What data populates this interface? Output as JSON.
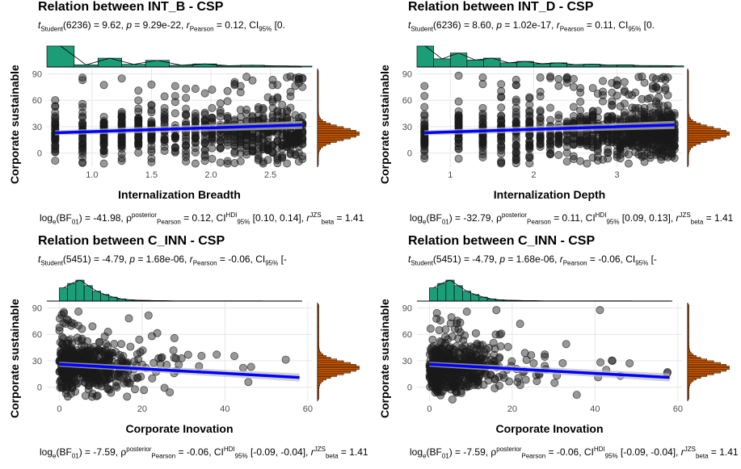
{
  "colors": {
    "points": "#1a1a1a",
    "fit_line": "#0000ff",
    "top_hist": "#1b9e77",
    "right_hist": "#d95f02",
    "grid": "#e6e6e6",
    "ci_band": "#bfbfbf"
  },
  "chart_data": [
    {
      "type": "scatter",
      "title": "Relation between INT_B - CSP",
      "subtitle": {
        "t_label": "t",
        "t_sub": "Student",
        "df": "(6236) = 9.62, ",
        "p_label": "p",
        "p_text": " = 9.29e-22, ",
        "r_label": "r",
        "r_hat": "^",
        "r_sub": "Pearson",
        "r_text": " = 0.12, CI",
        "ci_sub": "95%",
        "ci_text": " [0."
      },
      "caption": {
        "pre": "log",
        "pre_sub": "e",
        "bf": "(BF",
        "bf_sub": "01",
        "bf_val": ") = -41.98, ",
        "rho": "ρ",
        "rho_sup": "posterior",
        "rho_sub": "Pearson",
        "rho_val": " = 0.12, CI",
        "ci_sup": "HDI",
        "ci_sub": "95%",
        "ci_val": " [0.10, 0.14], ",
        "r": "r",
        "r_sup": "JZS",
        "r_sub": "beta",
        "r_val": " = 1.41"
      },
      "xlabel": "Internalization Breadth",
      "ylabel": "Corporate sustainable",
      "xlim": [
        0.62,
        2.85
      ],
      "ylim": [
        -16,
        96
      ],
      "xticks": [
        1.0,
        1.5,
        2.0,
        2.5
      ],
      "xtick_labels": [
        "1.0",
        "1.5",
        "2.0",
        "2.5"
      ],
      "yticks": [
        0,
        30,
        60,
        90
      ],
      "ytick_labels": [
        "0",
        "30",
        "60",
        "90"
      ],
      "x_levels": [
        0.69,
        0.92,
        1.1,
        1.25,
        1.39,
        1.5,
        1.61,
        1.7,
        1.79,
        1.87,
        1.95,
        2.01,
        2.08,
        2.14,
        2.2,
        2.25,
        2.3,
        2.35,
        2.4,
        2.44,
        2.48,
        2.52,
        2.56,
        2.6,
        2.64,
        2.67,
        2.71,
        2.74,
        2.77
      ],
      "fit": {
        "x": [
          0.69,
          2.77
        ],
        "y": [
          23,
          32
        ]
      },
      "top_hist": {
        "edges": [
          0.62,
          0.85,
          1.05,
          1.25,
          1.45,
          1.65,
          1.85,
          2.05,
          2.25,
          2.45,
          2.65,
          2.85
        ],
        "counts": [
          95,
          10,
          40,
          12,
          30,
          8,
          14,
          6,
          8,
          5,
          4
        ]
      },
      "right_hist": {
        "center": 22,
        "spread": 7,
        "tail": 0.02
      }
    },
    {
      "type": "scatter",
      "title": "Relation between INT_D - CSP",
      "subtitle": {
        "t_label": "t",
        "t_sub": "Student",
        "df": "(6236) = 8.60, ",
        "p_label": "p",
        "p_text": " = 1.02e-17, ",
        "r_label": "r",
        "r_hat": "^",
        "r_sub": "Pearson",
        "r_text": " = 0.11, CI",
        "ci_sub": "95%",
        "ci_text": " [0."
      },
      "caption": {
        "pre": "log",
        "pre_sub": "e",
        "bf": "(BF",
        "bf_sub": "01",
        "bf_val": ") = -32.79, ",
        "rho": "ρ",
        "rho_sup": "posterior",
        "rho_sub": "Pearson",
        "rho_val": " = 0.11, CI",
        "ci_sup": "HDI",
        "ci_sub": "95%",
        "ci_val": " [0.09, 0.13], ",
        "r": "r",
        "r_sup": "JZS",
        "r_sub": "beta",
        "r_val": " = 1.41"
      },
      "xlabel": "Internalization Depth",
      "ylabel": "Corporate sustainable",
      "xlim": [
        0.6,
        3.78
      ],
      "ylim": [
        -16,
        96
      ],
      "xticks": [
        1,
        2,
        3
      ],
      "xtick_labels": [
        "1",
        "2",
        "3"
      ],
      "yticks": [
        0,
        30,
        60,
        90
      ],
      "ytick_labels": [
        "0",
        "30",
        "60",
        "90"
      ],
      "x_levels": [
        0.69,
        1.1,
        1.39,
        1.61,
        1.79,
        1.95,
        2.08,
        2.2,
        2.3,
        2.4,
        2.48,
        2.56,
        2.64,
        2.71,
        2.77,
        2.83,
        2.89,
        2.94,
        3.0,
        3.04,
        3.09,
        3.14,
        3.18,
        3.22,
        3.26,
        3.3,
        3.33,
        3.37,
        3.4,
        3.43,
        3.47,
        3.5,
        3.53,
        3.56,
        3.58,
        3.61,
        3.64,
        3.66,
        3.69
      ],
      "fit": {
        "x": [
          0.69,
          3.69
        ],
        "y": [
          23,
          32
        ]
      },
      "top_hist": {
        "edges": [
          0.6,
          0.8,
          1.0,
          1.2,
          1.4,
          1.6,
          1.8,
          2.0,
          2.2,
          2.4,
          2.6,
          2.8,
          3.0,
          3.2,
          3.4,
          3.6,
          3.8
        ],
        "counts": [
          90,
          35,
          60,
          30,
          38,
          18,
          24,
          14,
          18,
          10,
          12,
          8,
          9,
          6,
          6,
          5
        ]
      },
      "right_hist": {
        "center": 22,
        "spread": 7,
        "tail": 0.02
      }
    },
    {
      "type": "scatter",
      "title": "Relation between C_INN - CSP",
      "subtitle": {
        "t_label": "t",
        "t_sub": "Student",
        "df": "(5451) = -4.79, ",
        "p_label": "p",
        "p_text": " = 1.68e-06, ",
        "r_label": "r",
        "r_hat": "^",
        "r_sub": "Pearson",
        "r_text": " = -0.06, CI",
        "ci_sub": "95%",
        "ci_text": " [-"
      },
      "caption": {
        "pre": "log",
        "pre_sub": "e",
        "bf": "(BF",
        "bf_sub": "01",
        "bf_val": ") = -7.59, ",
        "rho": "ρ",
        "rho_sup": "posterior",
        "rho_sub": "Pearson",
        "rho_val": " = -0.06, CI",
        "ci_sup": "HDI",
        "ci_sub": "95%",
        "ci_val": " [-0.09, -0.04], ",
        "r": "r",
        "r_sup": "JZS",
        "r_sub": "beta",
        "r_val": " = 1.41"
      },
      "xlabel": "Corporate Inovation",
      "ylabel": "Corporate sustainable",
      "xlim": [
        -3,
        61
      ],
      "ylim": [
        -16,
        96
      ],
      "xticks": [
        0,
        20,
        40,
        60
      ],
      "xtick_labels": [
        "0",
        "20",
        "40",
        "60"
      ],
      "yticks": [
        0,
        30,
        60,
        90
      ],
      "ytick_labels": [
        "0",
        "30",
        "60",
        "90"
      ],
      "fit": {
        "x": [
          0,
          58
        ],
        "y": [
          26,
          11
        ]
      },
      "top_hist": {
        "edges": [
          0,
          2,
          4,
          6,
          8,
          10,
          12,
          14,
          16,
          18,
          20,
          22,
          24,
          26,
          30,
          40,
          58
        ],
        "counts": [
          60,
          80,
          95,
          70,
          45,
          30,
          18,
          10,
          6,
          4,
          3,
          2,
          2,
          1,
          1,
          1
        ]
      },
      "right_hist": {
        "center": 22,
        "spread": 7,
        "tail": 0.03
      }
    },
    {
      "type": "scatter",
      "title": "Relation between C_INN - CSP",
      "subtitle": {
        "t_label": "t",
        "t_sub": "Student",
        "df": "(5451) = -4.79, ",
        "p_label": "p",
        "p_text": " = 1.68e-06, ",
        "r_label": "r",
        "r_hat": "^",
        "r_sub": "Pearson",
        "r_text": " = -0.06, CI",
        "ci_sub": "95%",
        "ci_text": " [-"
      },
      "caption": {
        "pre": "log",
        "pre_sub": "e",
        "bf": "(BF",
        "bf_sub": "01",
        "bf_val": ") = -7.59, ",
        "rho": "ρ",
        "rho_sup": "posterior",
        "rho_sub": "Pearson",
        "rho_val": " = -0.06, CI",
        "ci_sup": "HDI",
        "ci_sub": "95%",
        "ci_val": " [-0.09, -0.04], ",
        "r": "r",
        "r_sup": "JZS",
        "r_sub": "beta",
        "r_val": " = 1.41"
      },
      "xlabel": "Corporate Inovation",
      "ylabel": "Corporate sustainable",
      "xlim": [
        -3,
        61
      ],
      "ylim": [
        -16,
        96
      ],
      "xticks": [
        0,
        20,
        40,
        60
      ],
      "xtick_labels": [
        "0",
        "20",
        "40",
        "60"
      ],
      "yticks": [
        0,
        30,
        60,
        90
      ],
      "ytick_labels": [
        "0",
        "30",
        "60",
        "90"
      ],
      "fit": {
        "x": [
          0,
          58
        ],
        "y": [
          26,
          11
        ]
      },
      "top_hist": {
        "edges": [
          0,
          2,
          4,
          6,
          8,
          10,
          12,
          14,
          16,
          18,
          20,
          22,
          24,
          26,
          30,
          40,
          58
        ],
        "counts": [
          60,
          80,
          95,
          70,
          45,
          30,
          18,
          10,
          6,
          4,
          3,
          2,
          2,
          1,
          1,
          1
        ]
      },
      "right_hist": {
        "center": 22,
        "spread": 7,
        "tail": 0.03
      }
    }
  ]
}
